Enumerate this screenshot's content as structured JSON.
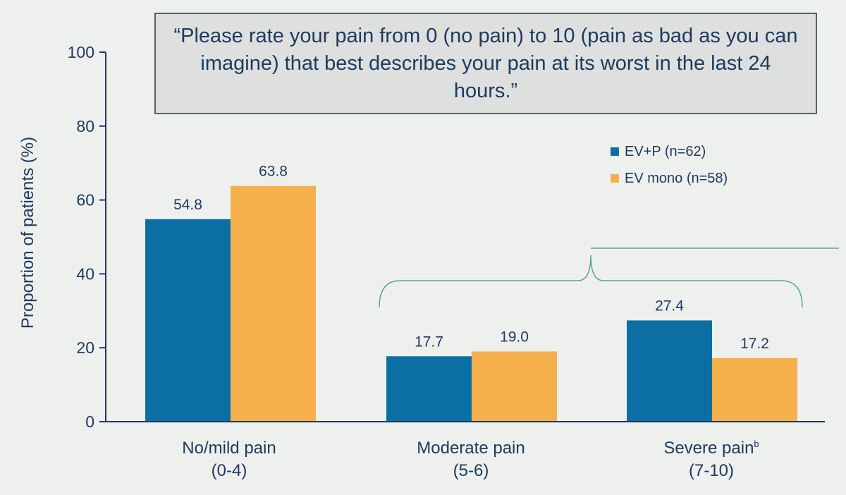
{
  "quote": "“Please rate your pain from 0 (no pain) to 10 (pain as bad as you can imagine) that best describes your pain at its worst in the last 24 hours.”",
  "colors": {
    "ev_p": "#0b6fa4",
    "ev_mono": "#f5b04c",
    "text": "#1f3a60",
    "bracket": "#5aa58a"
  },
  "chart_data": {
    "type": "bar",
    "title": "",
    "xlabel": "",
    "ylabel": "Proportion of patients (%)",
    "ylim": [
      0,
      100
    ],
    "yticks": [
      "0",
      "20",
      "40",
      "60",
      "80",
      "100"
    ],
    "categories": [
      {
        "line1": "No/mild pain",
        "sup": "",
        "line2": "(0-4)"
      },
      {
        "line1": "Moderate pain",
        "sup": "",
        "line2": "(5-6)"
      },
      {
        "line1": "Severe pain",
        "sup": "b",
        "line2": "(7-10)"
      }
    ],
    "series": [
      {
        "name": "EV+P (n=62)",
        "values": [
          54.8,
          17.7,
          27.4
        ],
        "labels": [
          "54.8",
          "17.7",
          "27.4"
        ]
      },
      {
        "name": "EV mono (n=58)",
        "values": [
          63.8,
          19.0,
          17.2
        ],
        "labels": [
          "63.8",
          "19.0",
          "17.2"
        ]
      }
    ],
    "legend_position": "top-right",
    "grid": false
  }
}
